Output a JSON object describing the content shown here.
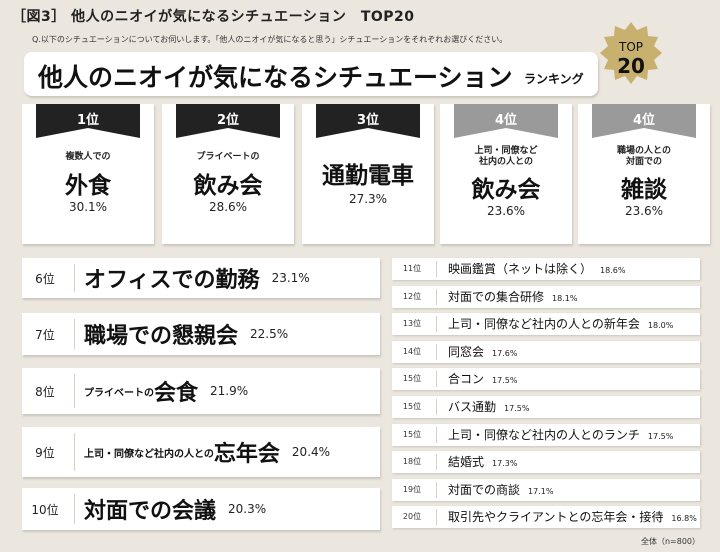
{
  "header": {
    "title": "［図3］ 他人のニオイが気になるシチュエーション　TOP20",
    "question": "Q.以下のシチュエーションについてお伺いします。「他人のニオイが気になると思う」シチュエーションをそれぞれお選びください。"
  },
  "banner": {
    "main": "他人のニオイが気になるシチュエーション",
    "sub": "ランキング"
  },
  "badge": {
    "top": "TOP",
    "num": "20"
  },
  "colors": {
    "background": "#ebe7df",
    "ribbon_dark": "#222222",
    "ribbon_gray": "#9a9a9a",
    "badge": "#c8b06e"
  },
  "chart_data": {
    "type": "table",
    "title": "他人のニオイが気になるシチュエーション　TOP20",
    "unit": "%",
    "rows": [
      {
        "rank": "1位",
        "sub": "複数人での",
        "main": "外食",
        "value": 30.1,
        "value_label": "30.1%"
      },
      {
        "rank": "2位",
        "sub": "プライベートの",
        "main": "飲み会",
        "value": 28.6,
        "value_label": "28.6%"
      },
      {
        "rank": "3位",
        "sub": "",
        "main": "通勤電車",
        "value": 27.3,
        "value_label": "27.3%"
      },
      {
        "rank": "4位",
        "sub": "上司・同僚など\n社内の人との",
        "main": "飲み会",
        "value": 23.6,
        "value_label": "23.6%"
      },
      {
        "rank": "4位",
        "sub": "職場の人との\n対面での",
        "main": "雑談",
        "value": 23.6,
        "value_label": "23.6%"
      },
      {
        "rank": "6位",
        "sub": "",
        "main": "オフィスでの勤務",
        "value": 23.1,
        "value_label": "23.1%"
      },
      {
        "rank": "7位",
        "sub": "",
        "main": "職場での懇親会",
        "value": 22.5,
        "value_label": "22.5%"
      },
      {
        "rank": "8位",
        "sub": "プライベートの",
        "main": "会食",
        "value": 21.9,
        "value_label": "21.9%"
      },
      {
        "rank": "9位",
        "sub": "上司・同僚など社内の人との",
        "main": "忘年会",
        "value": 20.4,
        "value_label": "20.4%"
      },
      {
        "rank": "10位",
        "sub": "",
        "main": "対面での会議",
        "value": 20.3,
        "value_label": "20.3%"
      },
      {
        "rank": "11位",
        "main": "映画鑑賞（ネットは除く）",
        "value": 18.6,
        "value_label": "18.6%"
      },
      {
        "rank": "12位",
        "main": "対面での集合研修",
        "value": 18.1,
        "value_label": "18.1%"
      },
      {
        "rank": "13位",
        "main": "上司・同僚など社内の人との新年会",
        "value": 18.0,
        "value_label": "18.0%"
      },
      {
        "rank": "14位",
        "main": "同窓会",
        "value": 17.6,
        "value_label": "17.6%"
      },
      {
        "rank": "15位",
        "main": "合コン",
        "value": 17.5,
        "value_label": "17.5%"
      },
      {
        "rank": "15位",
        "main": "バス通勤",
        "value": 17.5,
        "value_label": "17.5%"
      },
      {
        "rank": "15位",
        "main": "上司・同僚など社内の人とのランチ",
        "value": 17.5,
        "value_label": "17.5%"
      },
      {
        "rank": "18位",
        "main": "結婚式",
        "value": 17.3,
        "value_label": "17.3%"
      },
      {
        "rank": "19位",
        "main": "対面での商談",
        "value": 17.1,
        "value_label": "17.1%"
      },
      {
        "rank": "20位",
        "main": "取引先やクライアントとの忘年会・接待",
        "value": 16.8,
        "value_label": "16.8%"
      }
    ],
    "note": "全体（n=800）"
  }
}
